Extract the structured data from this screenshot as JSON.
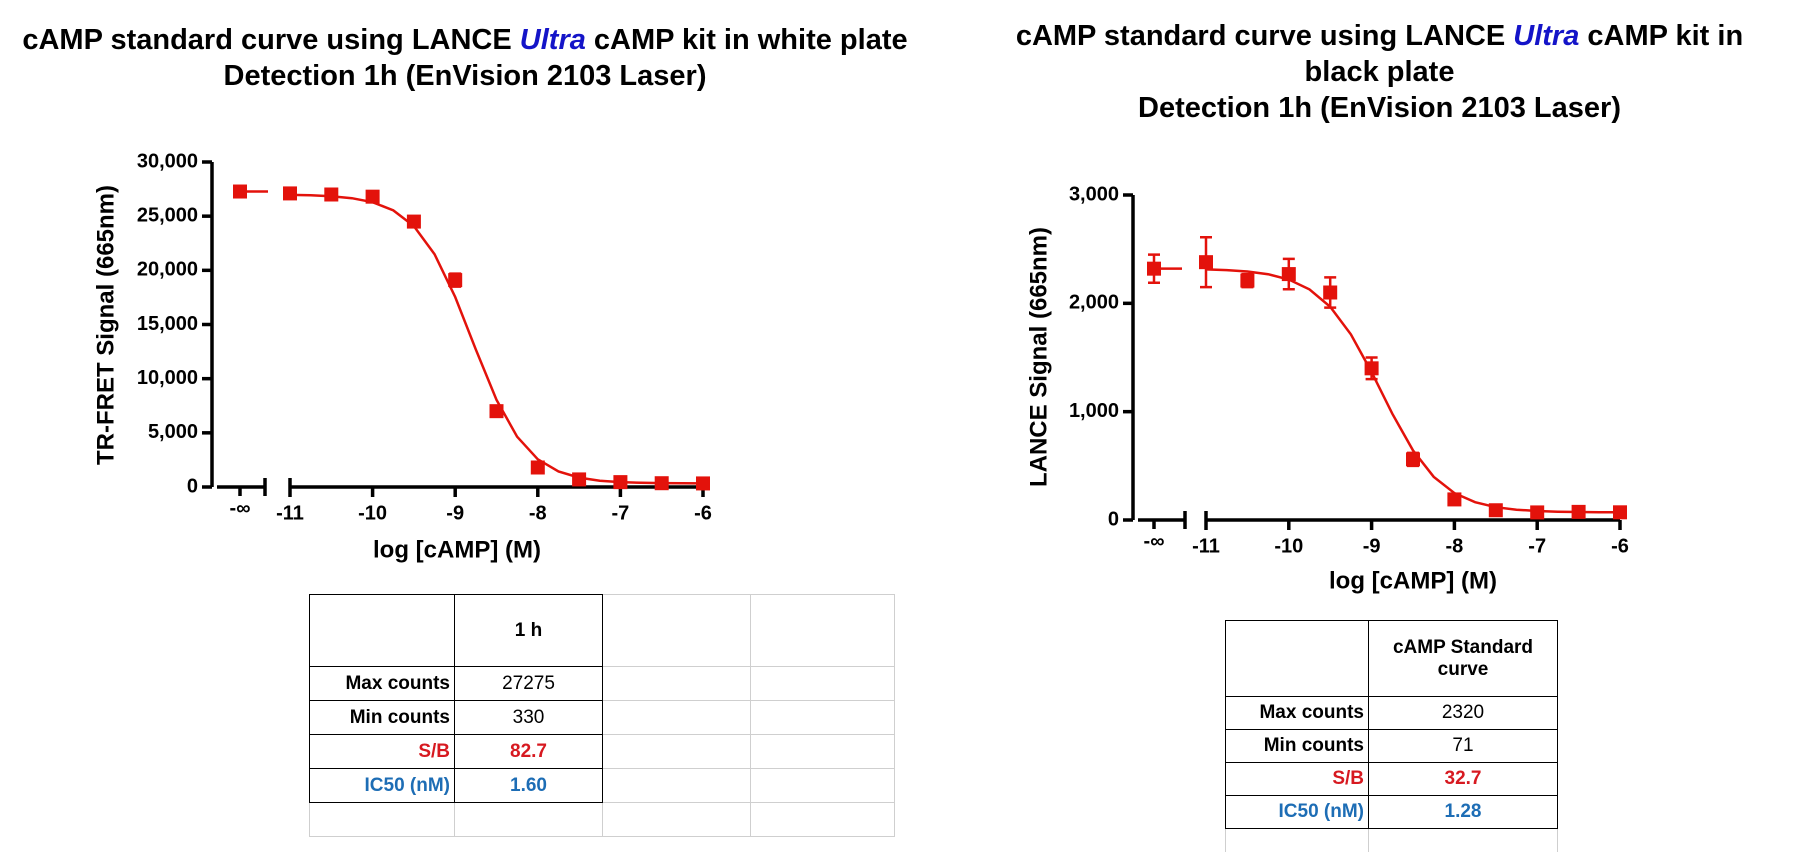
{
  "chart_data": [
    {
      "type": "scatter",
      "title": [
        "cAMP standard curve using LANCE",
        "Ultra",
        "cAMP kit in white plate"
      ],
      "subtitle": "Detection 1h (EnVision 2103 Laser)",
      "xlabel": "log [cAMP] (M)",
      "ylabel": "TR-FRET Signal (665nm)",
      "color": "#e3120b",
      "xlim": [
        -11,
        -6
      ],
      "xticks": [
        -11,
        -10,
        -9,
        -8,
        -7,
        -6
      ],
      "ylim": [
        0,
        30000
      ],
      "yticks": [
        0,
        {
          "value": 5000,
          "label": "5,000"
        },
        {
          "value": 10000,
          "label": "10,000"
        },
        {
          "value": 15000,
          "label": "15,000"
        },
        {
          "value": 20000,
          "label": "20,000"
        },
        {
          "value": 25000,
          "label": "25,000"
        },
        {
          "value": 30000,
          "label": "30,000"
        }
      ],
      "blank": {
        "label": "-∞",
        "value": 27275,
        "error": 500
      },
      "x": [
        -11,
        -10.5,
        -10,
        -9.5,
        -9,
        -8.5,
        -8,
        -7.5,
        -7,
        -6.5,
        -6
      ],
      "values": [
        27100,
        27000,
        26800,
        24500,
        19100,
        7000,
        1800,
        700,
        450,
        350,
        330
      ],
      "errors": [
        200,
        200,
        250,
        300,
        600,
        500,
        200,
        150,
        100,
        100,
        100
      ],
      "fit": {
        "x": [
          -11,
          -10.75,
          -10.5,
          -10.25,
          -10,
          -9.75,
          -9.5,
          -9.25,
          -9,
          -8.75,
          -8.5,
          -8.25,
          -8,
          -7.75,
          -7.5,
          -7.25,
          -7,
          -6.75,
          -6.5,
          -6.25,
          -6
        ],
        "values": [
          26963,
          26922,
          26836,
          26657,
          26285,
          25533,
          24079,
          21497,
          17542,
          12672,
          8049,
          4639,
          2560,
          1433,
          864,
          585,
          451,
          388,
          357,
          343,
          336
        ]
      }
    },
    {
      "type": "scatter",
      "title": [
        "cAMP standard curve using LANCE",
        "Ultra",
        "cAMP kit in black plate"
      ],
      "subtitle": "Detection 1h (EnVision 2103 Laser)",
      "xlabel": "log [cAMP] (M)",
      "ylabel": "LANCE Signal (665nm)",
      "color": "#e3120b",
      "xlim": [
        -11,
        -6
      ],
      "xticks": [
        -11,
        -10,
        -9,
        -8,
        -7,
        -6
      ],
      "ylim": [
        0,
        3000
      ],
      "yticks": [
        0,
        {
          "value": 1000,
          "label": "1,000"
        },
        {
          "value": 2000,
          "label": "2,000"
        },
        {
          "value": 3000,
          "label": "3,000"
        }
      ],
      "blank": {
        "label": "-∞",
        "value": 2320,
        "error": 130
      },
      "x": [
        -11,
        -10.5,
        -10,
        -9.5,
        -9,
        -8.5,
        -8,
        -7.5,
        -7,
        -6.5,
        -6
      ],
      "values": [
        2380,
        2210,
        2270,
        2100,
        1400,
        560,
        190,
        90,
        70,
        75,
        71
      ],
      "errors": [
        230,
        60,
        140,
        140,
        100,
        60,
        20,
        15,
        10,
        10,
        10
      ],
      "fit": {
        "x": [
          -11,
          -10.75,
          -10.5,
          -10.25,
          -10,
          -9.75,
          -9.5,
          -9.25,
          -9,
          -8.75,
          -8.5,
          -8.25,
          -8,
          -7.75,
          -7.5,
          -7.25,
          -7,
          -6.75,
          -6.5,
          -6.25,
          -6
        ],
        "values": [
          2313,
          2307,
          2294,
          2269,
          2220,
          2129,
          1968,
          1713,
          1365,
          981,
          642,
          399,
          248,
          164,
          118,
          95,
          83,
          77,
          74,
          72,
          72
        ]
      }
    }
  ],
  "tables": [
    {
      "column_header": "1 h",
      "rows": [
        {
          "label": "Max counts",
          "value": "27275"
        },
        {
          "label": "Min counts",
          "value": "330"
        },
        {
          "label": "S/B",
          "value": "82.7",
          "color": "#d71920"
        },
        {
          "label": "IC50 (nM)",
          "value": "1.60",
          "color": "#1d6db5"
        }
      ]
    },
    {
      "column_header": "cAMP Standard curve",
      "rows": [
        {
          "label": "Max counts",
          "value": "2320"
        },
        {
          "label": "Min counts",
          "value": "71"
        },
        {
          "label": "S/B",
          "value": "32.7",
          "color": "#d71920"
        },
        {
          "label": "IC50 (nM)",
          "value": "1.28",
          "color": "#1d6db5"
        }
      ]
    }
  ]
}
